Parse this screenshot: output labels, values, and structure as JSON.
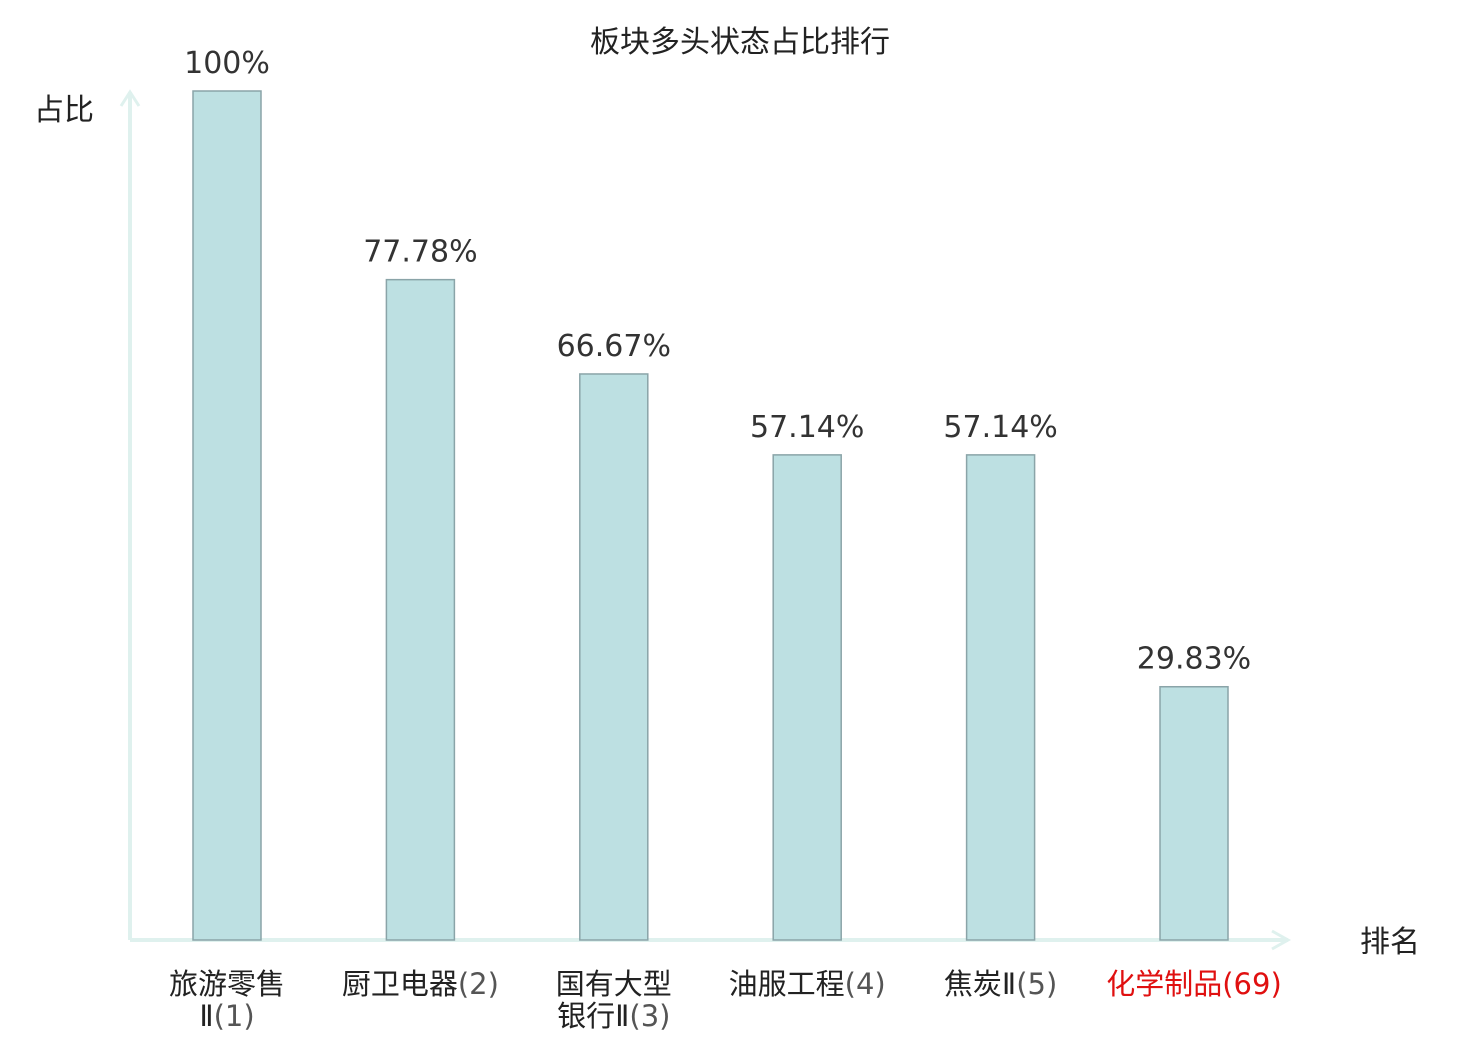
{
  "chart_data": {
    "type": "bar",
    "title": "板块多头状态占比排行",
    "ylabel": "占比",
    "xlabel": "排名",
    "ylim": [
      0,
      100
    ],
    "grid": false,
    "categories": [
      {
        "name_lines": [
          "旅游零售",
          "Ⅱ"
        ],
        "rank": "(1)",
        "highlight": false
      },
      {
        "name_lines": [
          "厨卫电器"
        ],
        "rank": "(2)",
        "highlight": false
      },
      {
        "name_lines": [
          "国有大型",
          "银行Ⅱ"
        ],
        "rank": "(3)",
        "highlight": false
      },
      {
        "name_lines": [
          "油服工程"
        ],
        "rank": "(4)",
        "highlight": false
      },
      {
        "name_lines": [
          "焦炭Ⅱ"
        ],
        "rank": "(5)",
        "highlight": false
      },
      {
        "name_lines": [
          "化学制品"
        ],
        "rank": "(69)",
        "highlight": true
      }
    ],
    "values": [
      100,
      77.78,
      66.67,
      57.14,
      57.14,
      29.83
    ],
    "value_labels": [
      "100%",
      "77.78%",
      "66.67%",
      "57.14%",
      "57.14%",
      "29.83%"
    ]
  },
  "colors": {
    "bar_fill": "#bde0e2",
    "bar_stroke": "#8aa4a8",
    "axis": "#dff1ee",
    "highlight_text": "#e01010",
    "text": "#222222",
    "rank_text": "#555555"
  }
}
